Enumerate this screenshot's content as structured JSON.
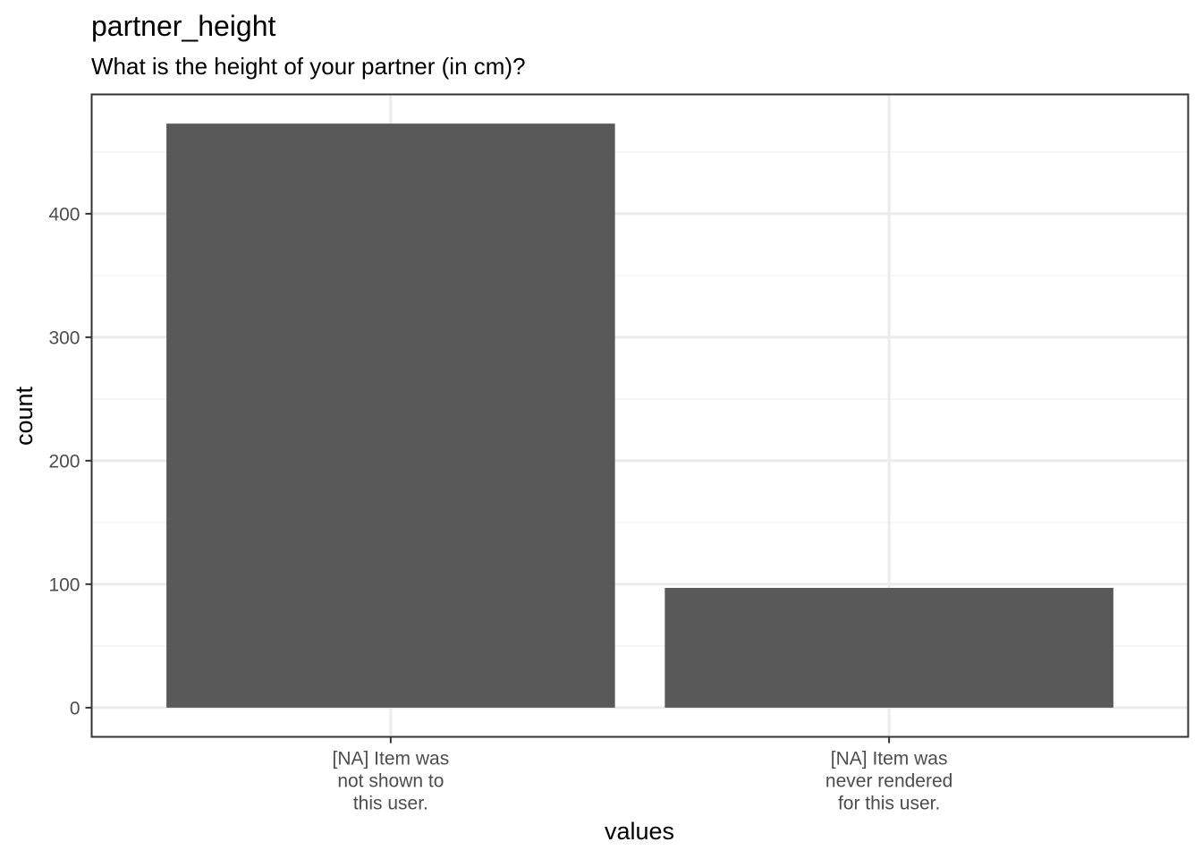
{
  "chart_data": {
    "type": "bar",
    "title": "partner_height",
    "subtitle": "What is the height of your partner (in cm)?",
    "xlabel": "values",
    "ylabel": "count",
    "categories": [
      [
        "[NA] Item was",
        "not shown to",
        "this user."
      ],
      [
        "[NA] Item was",
        "never rendered",
        "for this user."
      ]
    ],
    "values": [
      473,
      97
    ],
    "ylim": [
      -23.65,
      496.65
    ],
    "yticks": [
      0,
      100,
      200,
      300,
      400
    ],
    "grid": true,
    "colors": {
      "bar": "#595959",
      "grid_major": "#ebebeb",
      "grid_minor": "#f5f5f5",
      "panel_border": "#333333",
      "tick_text": "#4d4d4d"
    }
  }
}
